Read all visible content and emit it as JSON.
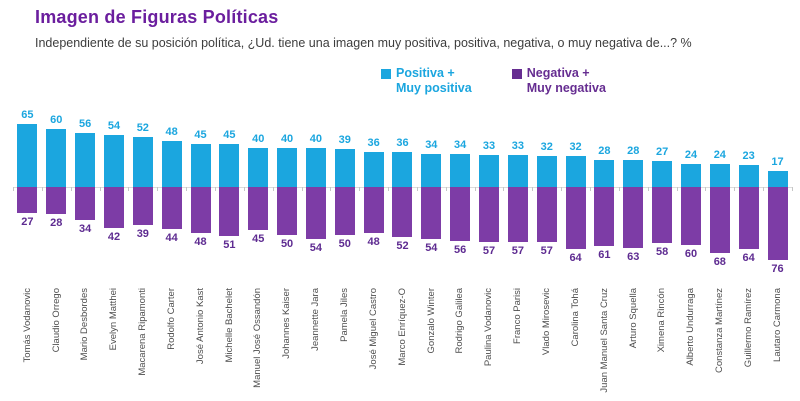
{
  "title": "Imagen de Figuras Políticas",
  "subtitle": "Independiente de su posición política, ¿Ud. tiene una imagen muy positiva, positiva, negativa, o muy negativa de...? %",
  "legend": {
    "positive": {
      "line1": "Positiva +",
      "line2": "Muy positiva"
    },
    "negative": {
      "line1": "Negativa +",
      "line2": "Muy negativa"
    }
  },
  "colors": {
    "title": "#6B1E9E",
    "subtitle_text": "#3d3d3d",
    "positive_bar": "#1BA6DF",
    "positive_label": "#1BA6DF",
    "negative_bar": "#7D3CA6",
    "negative_label": "#5E2B91",
    "legend_positive_text": "#1BA6DF",
    "legend_negative_text": "#662D91",
    "category_text": "#4d4d4d",
    "baseline": "#dcdcdc"
  },
  "chart_data": {
    "type": "bar",
    "subtype": "diverging-vertical",
    "unit": "%",
    "grid": false,
    "legend_position": "top-center",
    "categories": [
      "Tomás Vodanovic",
      "Claudio Orrego",
      "Mario Desbordes",
      "Evelyn Matthei",
      "Macarena Ripamonti",
      "Rodolfo Carter",
      "José Antonio Kast",
      "Michelle Bachelet",
      "Manuel José Ossandón",
      "Johannes Kaiser",
      "Jeannette Jara",
      "Pamela Jiles",
      "José Miguel Castro",
      "Marco Enríquez-O",
      "Gonzalo Winter",
      "Rodrigo Galilea",
      "Paulina Vodanovic",
      "Franco Parisi",
      "Vlado Mirosevic",
      "Carolina Tohá",
      "Juan Manuel Santa Cruz",
      "Arturo Squella",
      "Ximena Rincón",
      "Alberto Undurraga",
      "Constanza Martínez",
      "Guillermo Ramírez",
      "Lautaro Carmona"
    ],
    "series": [
      {
        "name": "Positiva + Muy positiva",
        "direction": "up",
        "values": [
          65,
          60,
          56,
          54,
          52,
          48,
          45,
          45,
          40,
          40,
          40,
          39,
          36,
          36,
          34,
          34,
          33,
          33,
          32,
          32,
          28,
          28,
          27,
          24,
          24,
          23,
          17
        ]
      },
      {
        "name": "Negativa + Muy negativa",
        "direction": "down",
        "values": [
          27,
          28,
          34,
          42,
          39,
          44,
          48,
          51,
          45,
          50,
          54,
          50,
          48,
          52,
          54,
          56,
          57,
          57,
          57,
          64,
          61,
          63,
          58,
          60,
          68,
          64,
          76
        ]
      }
    ]
  }
}
